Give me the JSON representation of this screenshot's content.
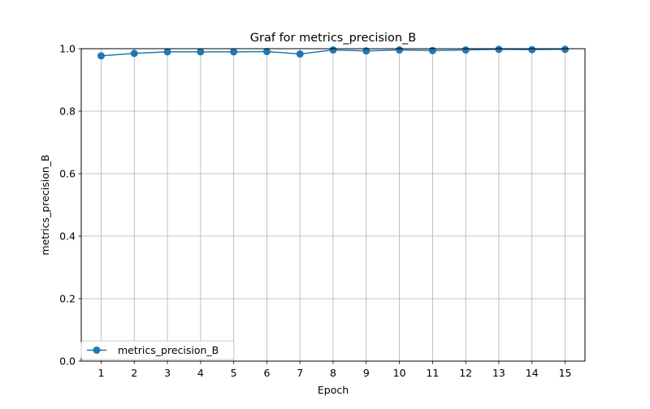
{
  "chart_data": {
    "type": "line",
    "title": "Graf for metrics_precision_B",
    "xlabel": "Epoch",
    "ylabel": "metrics_precision_B",
    "x": [
      1,
      2,
      3,
      4,
      5,
      6,
      7,
      8,
      9,
      10,
      11,
      12,
      13,
      14,
      15
    ],
    "series": [
      {
        "name": "metrics_precision_B",
        "color": "#1f77b4",
        "values": [
          0.977,
          0.985,
          0.99,
          0.99,
          0.99,
          0.991,
          0.983,
          0.996,
          0.993,
          0.996,
          0.994,
          0.996,
          0.998,
          0.997,
          0.998
        ]
      }
    ],
    "xlim": [
      0.4,
      15.6
    ],
    "ylim": [
      0.0,
      1.0
    ],
    "xticks": [
      1,
      2,
      3,
      4,
      5,
      6,
      7,
      8,
      9,
      10,
      11,
      12,
      13,
      14,
      15
    ],
    "yticks": [
      "0.0",
      "0.2",
      "0.4",
      "0.6",
      "0.8",
      "1.0"
    ],
    "grid": true,
    "legend_position": "lower-left",
    "marker": "circle"
  }
}
